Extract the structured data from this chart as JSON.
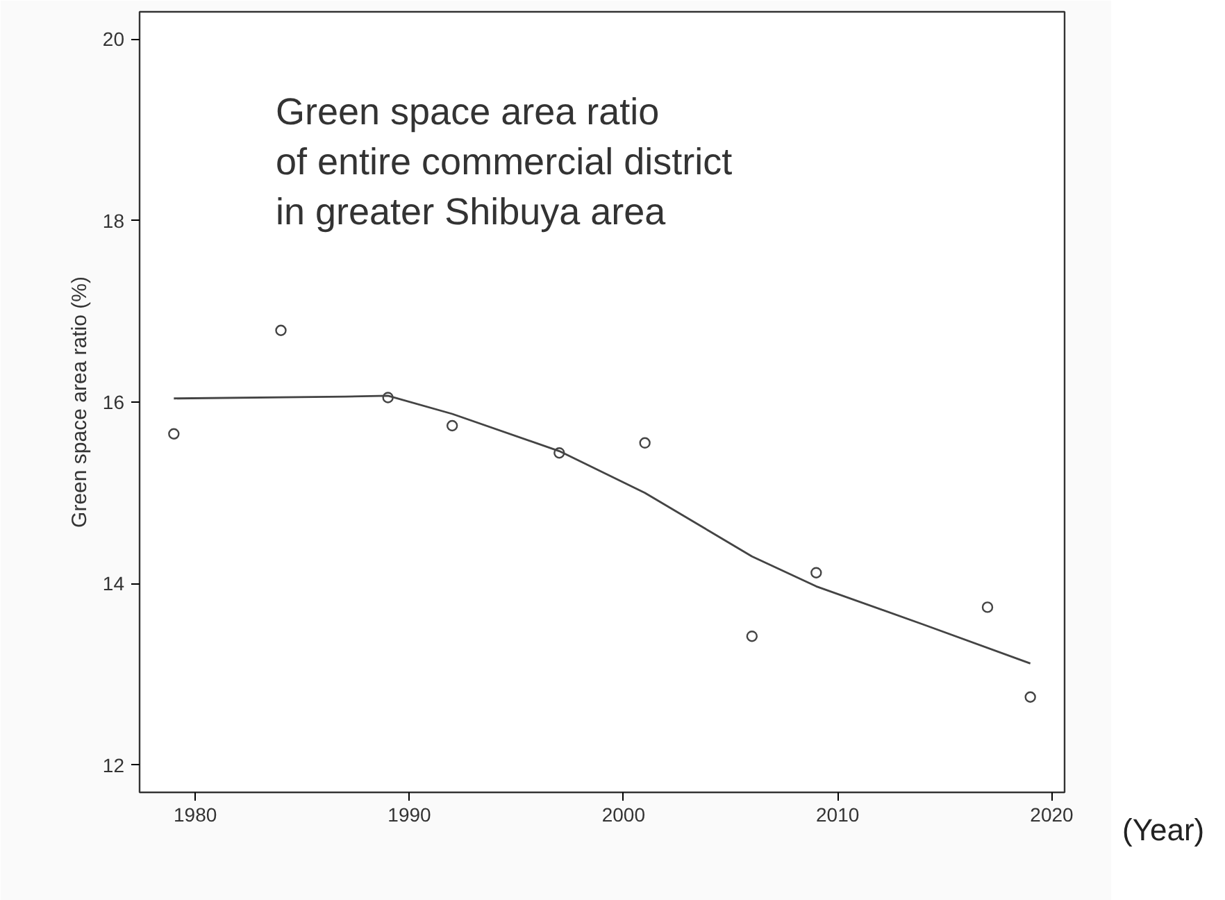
{
  "chart_data": {
    "type": "scatter",
    "title": "Green space area ratio\nof entire commercial district\nin greater Shibuya area",
    "xlabel": "(Year)",
    "ylabel": "Green space area ratio (%)",
    "x": [
      1979,
      1984,
      1989,
      1992,
      1997,
      2001,
      2006,
      2009,
      2017,
      2019
    ],
    "series": [
      {
        "color": "#444444",
        "marker": "circle",
        "values": [
          15.65,
          16.79,
          16.05,
          15.74,
          15.44,
          15.55,
          13.42,
          14.12,
          13.74,
          12.75
        ]
      },
      {
        "type": "line",
        "color": "#444444",
        "marker": "none",
        "x": [
          1979,
          1987,
          1989,
          1992,
          1997,
          2001,
          2006,
          2009,
          2014,
          2019
        ],
        "values": [
          16.04,
          16.06,
          16.07,
          15.87,
          15.46,
          15.0,
          14.3,
          13.97,
          13.55,
          13.12
        ]
      }
    ],
    "xlim": [
      1977.4,
      2020.6
    ],
    "ylim": [
      11.7,
      20.3
    ],
    "xticks": [
      1980,
      1990,
      2000,
      2010,
      2020
    ],
    "yticks": [
      12,
      14,
      16,
      18,
      20
    ],
    "grid": false,
    "line_style": "solid"
  }
}
